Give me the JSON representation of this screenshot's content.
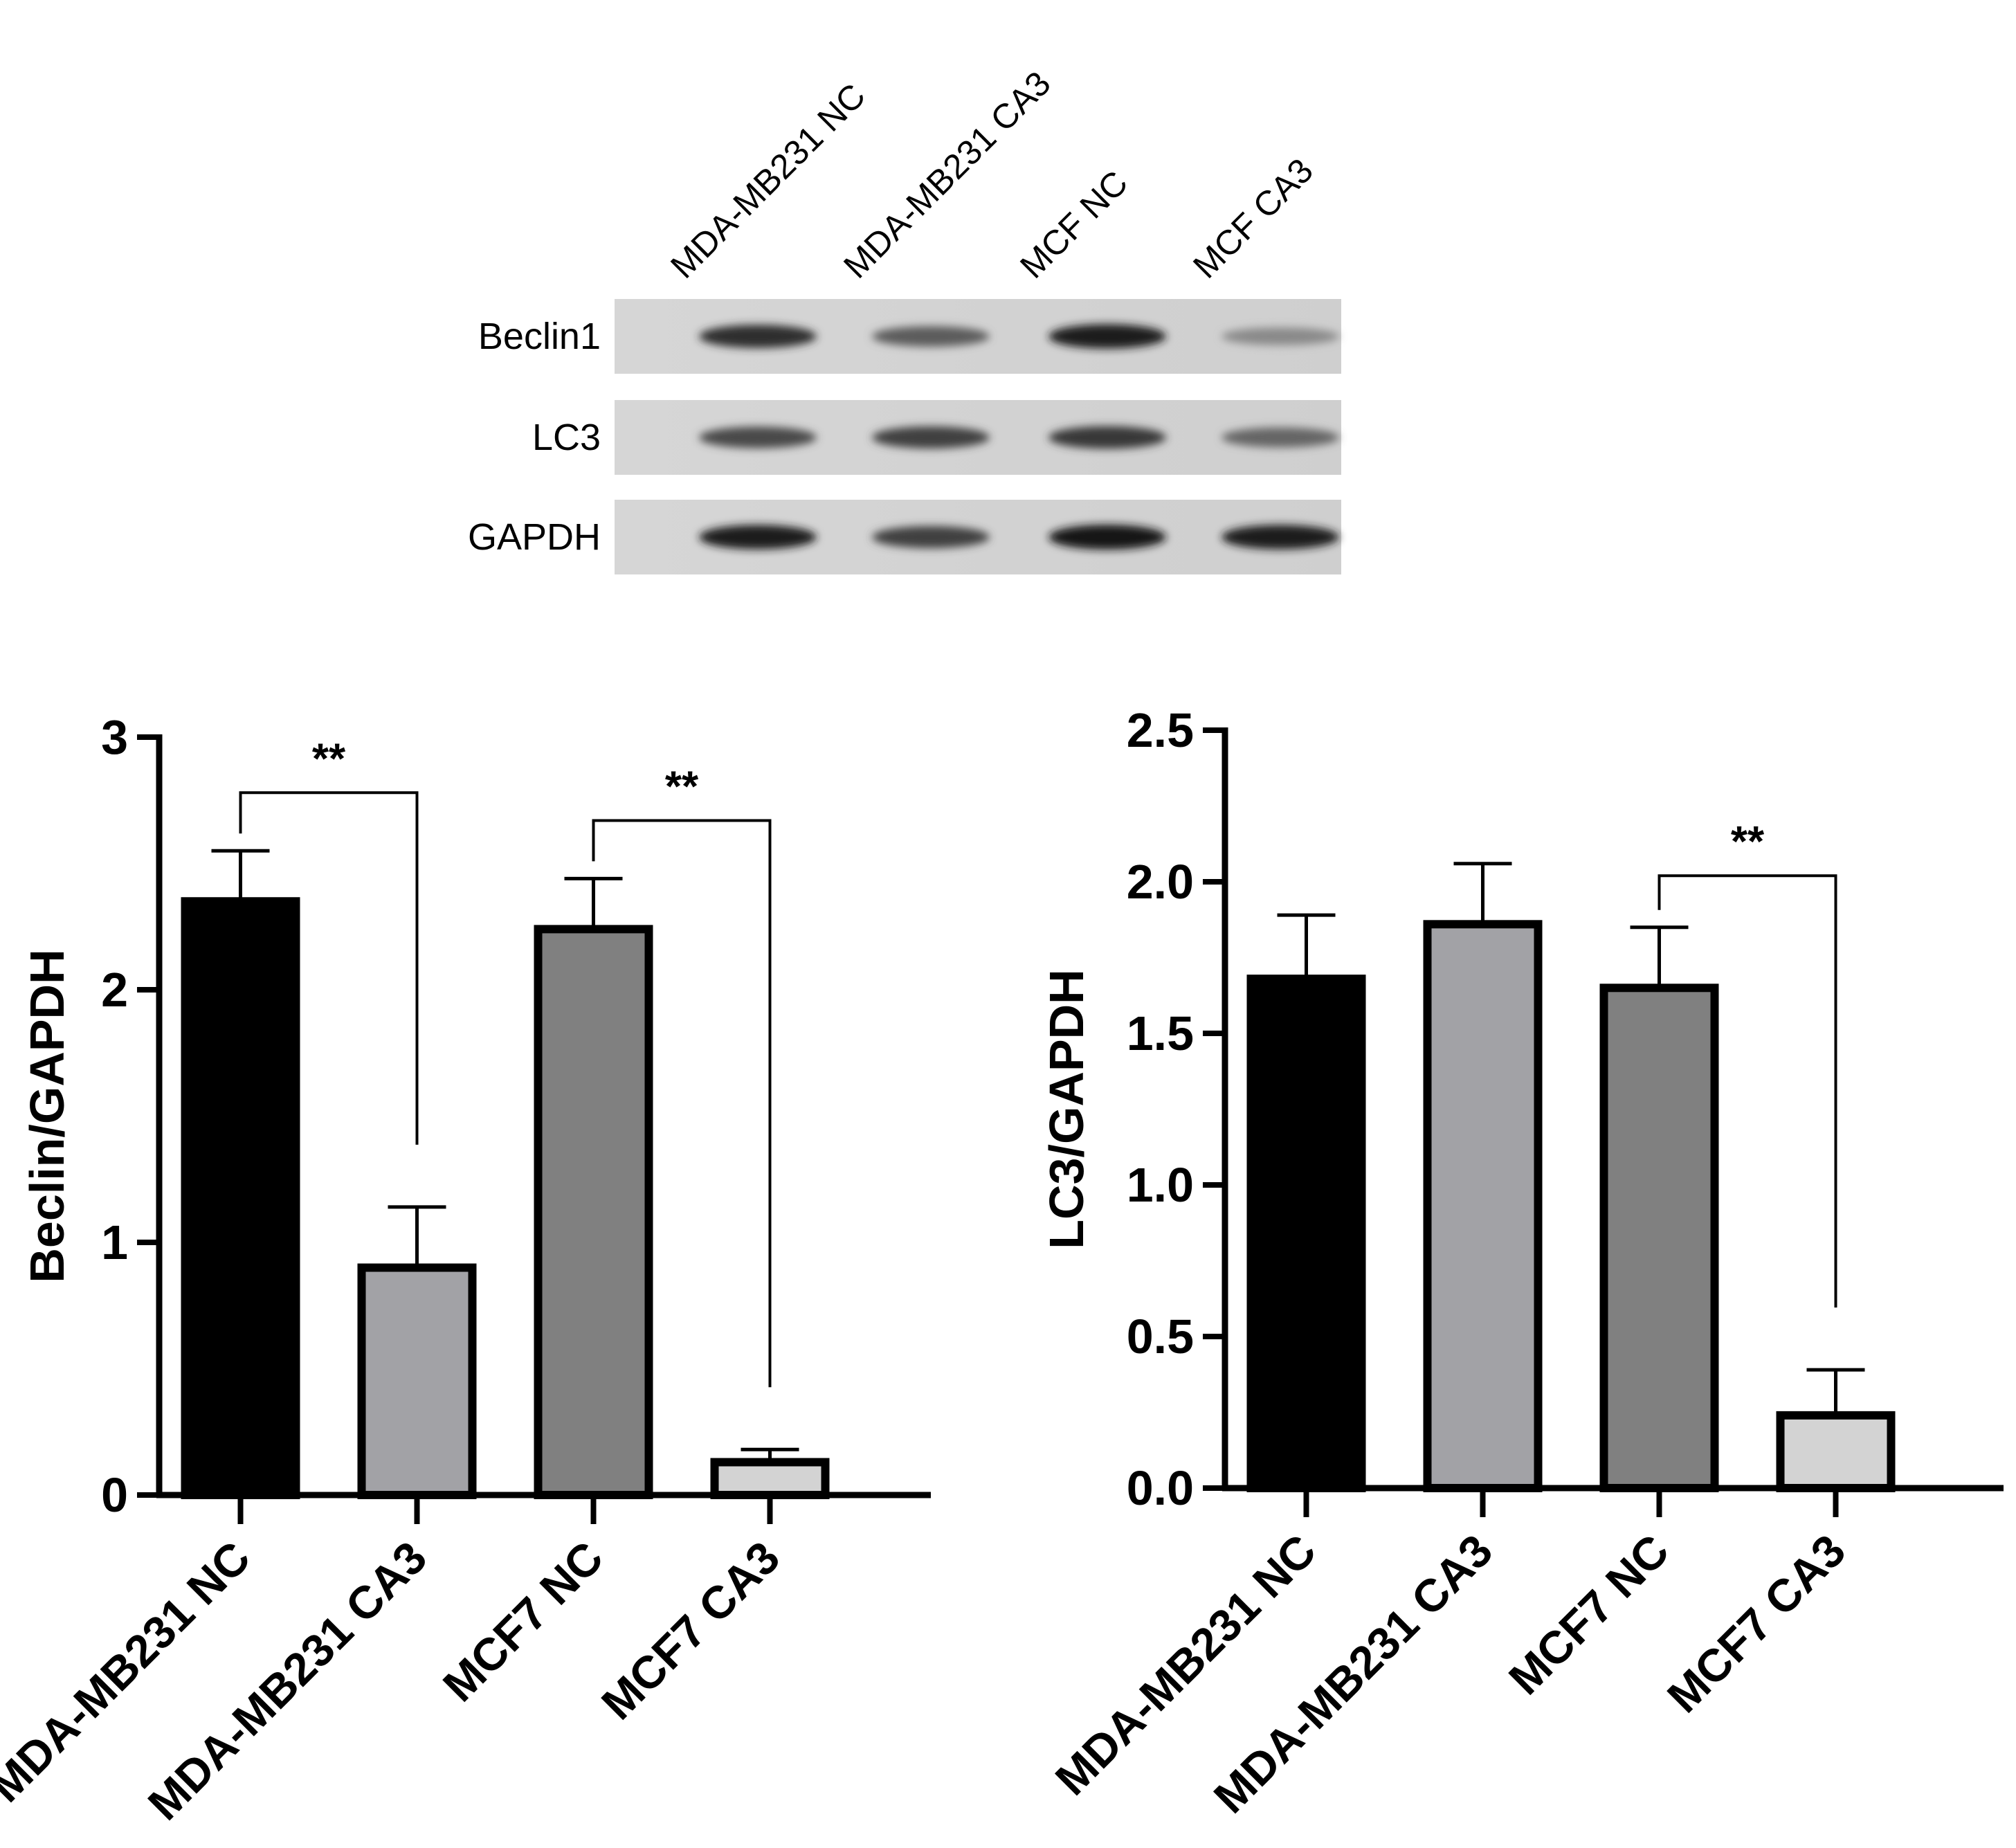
{
  "blot": {
    "lanes": [
      "MDA-MB231 NC",
      "MDA-MB231 CA3",
      "MCF NC",
      "MCF CA3"
    ],
    "rows": [
      {
        "label": "Beclin1",
        "intensity": [
          0.85,
          0.6,
          0.95,
          0.35
        ]
      },
      {
        "label": "LC3",
        "intensity": [
          0.7,
          0.75,
          0.8,
          0.55
        ]
      },
      {
        "label": "GAPDH",
        "intensity": [
          0.95,
          0.75,
          1.0,
          0.95
        ]
      }
    ]
  },
  "chart_data": [
    {
      "type": "bar",
      "title": "",
      "xlabel": "",
      "ylabel": "Beclin/GAPDH",
      "categories": [
        "MDA-MB231 NC",
        "MDA-MB231 CA3",
        "MCF7 NC",
        "MCF7 CA3"
      ],
      "values": [
        2.35,
        0.9,
        2.24,
        0.13
      ],
      "errors": [
        0.2,
        0.24,
        0.2,
        0.05
      ],
      "colors": [
        "#000000",
        "#a2a2a6",
        "#808080",
        "#d3d3d3"
      ],
      "ylim": [
        0,
        3
      ],
      "yticks": [
        0,
        1,
        2,
        3
      ],
      "ytick_labels": [
        "0",
        "1",
        "2",
        "3"
      ],
      "significance": [
        {
          "from": 0,
          "to": 1,
          "label": "**",
          "y": 2.78
        },
        {
          "from": 2,
          "to": 3,
          "label": "**",
          "y": 2.67
        }
      ],
      "grid": false
    },
    {
      "type": "bar",
      "title": "",
      "xlabel": "",
      "ylabel": "LC3/GAPDH",
      "categories": [
        "MDA-MB231 NC",
        "MDA-MB231 CA3",
        "MCF7 NC",
        "MCF7 CA3"
      ],
      "values": [
        1.68,
        1.86,
        1.65,
        0.24
      ],
      "errors": [
        0.21,
        0.2,
        0.2,
        0.15
      ],
      "colors": [
        "#000000",
        "#a2a2a6",
        "#808080",
        "#d3d3d3"
      ],
      "ylim": [
        0,
        2.5
      ],
      "yticks": [
        0,
        0.5,
        1.0,
        1.5,
        2.0,
        2.5
      ],
      "ytick_labels": [
        "0.0",
        "0.5",
        "1.0",
        "1.5",
        "2.0",
        "2.5"
      ],
      "significance": [
        {
          "from": 2,
          "to": 3,
          "label": "**",
          "y": 2.02
        }
      ],
      "grid": false
    }
  ]
}
